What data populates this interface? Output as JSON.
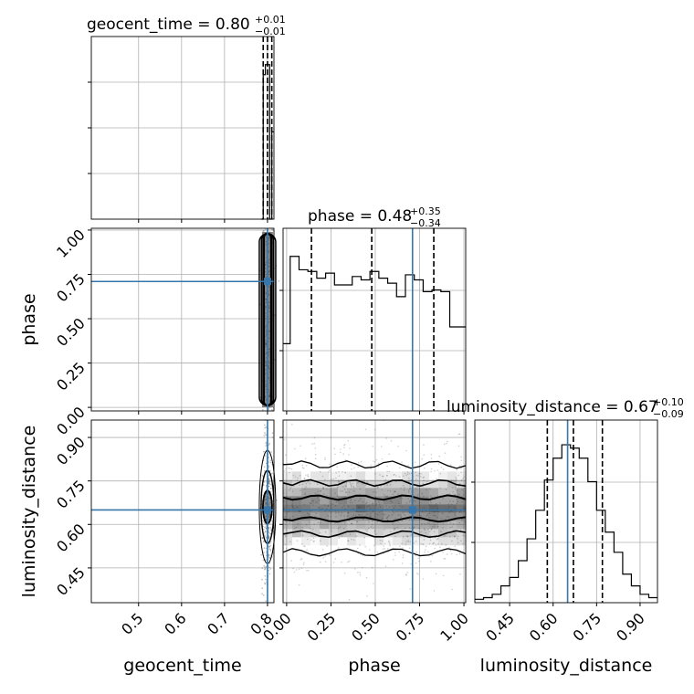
{
  "chart_data": {
    "type": "corner",
    "parameters": [
      "geocent_time",
      "phase",
      "luminosity_distance"
    ],
    "truths": {
      "geocent_time": 0.8,
      "phase": 0.71,
      "luminosity_distance": 0.65
    },
    "colors": {
      "truth": "#3776ab",
      "hist": "#000000",
      "grid": "#b0b0b0",
      "quantile": "#000000"
    },
    "grid": true,
    "titles": [
      {
        "param": "geocent_time",
        "text": "geocent_time = 0.80",
        "upper": "+0.01",
        "lower": "−0.01"
      },
      {
        "param": "phase",
        "text": "phase = 0.48",
        "upper": "+0.35",
        "lower": "−0.34"
      },
      {
        "param": "luminosity_distance",
        "text": "luminosity_distance = 0.67",
        "upper": "+0.10",
        "lower": "−0.09"
      }
    ],
    "axis_labels": {
      "x": [
        "geocent_time",
        "phase",
        "luminosity_distance"
      ],
      "y": [
        "phase",
        "luminosity_distance"
      ]
    },
    "ranges": {
      "geocent_time": [
        0.39,
        0.815
      ],
      "phase": [
        -0.02,
        1.01
      ],
      "luminosity_distance": [
        0.33,
        0.96
      ]
    },
    "ticks": {
      "geocent_time": [
        "0.5",
        "0.6",
        "0.7",
        "0.8"
      ],
      "phase": [
        "0.00",
        "0.25",
        "0.50",
        "0.75",
        "1.00"
      ],
      "luminosity_distance": [
        "0.45",
        "0.60",
        "0.75",
        "0.90"
      ]
    },
    "tick_values": {
      "geocent_time": [
        0.5,
        0.6,
        0.7,
        0.8
      ],
      "phase": [
        0.0,
        0.25,
        0.5,
        0.75,
        1.0
      ],
      "luminosity_distance": [
        0.45,
        0.6,
        0.75,
        0.9
      ]
    },
    "quantiles": {
      "geocent_time": [
        0.79,
        0.8,
        0.81
      ],
      "phase": [
        0.14,
        0.48,
        0.83
      ],
      "luminosity_distance": [
        0.58,
        0.67,
        0.77
      ]
    },
    "hist_geocent_time": {
      "edges": [
        0.785,
        0.79,
        0.795,
        0.8,
        0.805,
        0.81,
        0.815
      ],
      "counts": [
        0.0,
        0.86,
        0.92,
        0.92,
        0.0,
        0.52
      ]
    },
    "hist_phase": {
      "edges": [
        -0.02,
        0.02,
        0.07,
        0.12,
        0.17,
        0.22,
        0.27,
        0.32,
        0.37,
        0.42,
        0.47,
        0.52,
        0.57,
        0.62,
        0.67,
        0.72,
        0.77,
        0.82,
        0.87,
        0.92,
        0.97,
        1.01
      ],
      "counts": [
        0.4,
        0.92,
        0.84,
        0.83,
        0.79,
        0.82,
        0.75,
        0.75,
        0.8,
        0.78,
        0.83,
        0.79,
        0.76,
        0.68,
        0.81,
        0.78,
        0.71,
        0.72,
        0.71,
        0.5,
        0.5
      ]
    },
    "hist_luminosity_distance": {
      "edges": [
        0.33,
        0.36,
        0.39,
        0.42,
        0.45,
        0.48,
        0.51,
        0.54,
        0.57,
        0.6,
        0.63,
        0.66,
        0.69,
        0.72,
        0.75,
        0.78,
        0.81,
        0.84,
        0.87,
        0.9,
        0.93,
        0.96
      ],
      "counts": [
        0.02,
        0.03,
        0.05,
        0.1,
        0.15,
        0.25,
        0.38,
        0.55,
        0.73,
        0.86,
        0.94,
        0.92,
        0.86,
        0.72,
        0.55,
        0.42,
        0.3,
        0.17,
        0.1,
        0.05,
        0.03
      ]
    }
  }
}
